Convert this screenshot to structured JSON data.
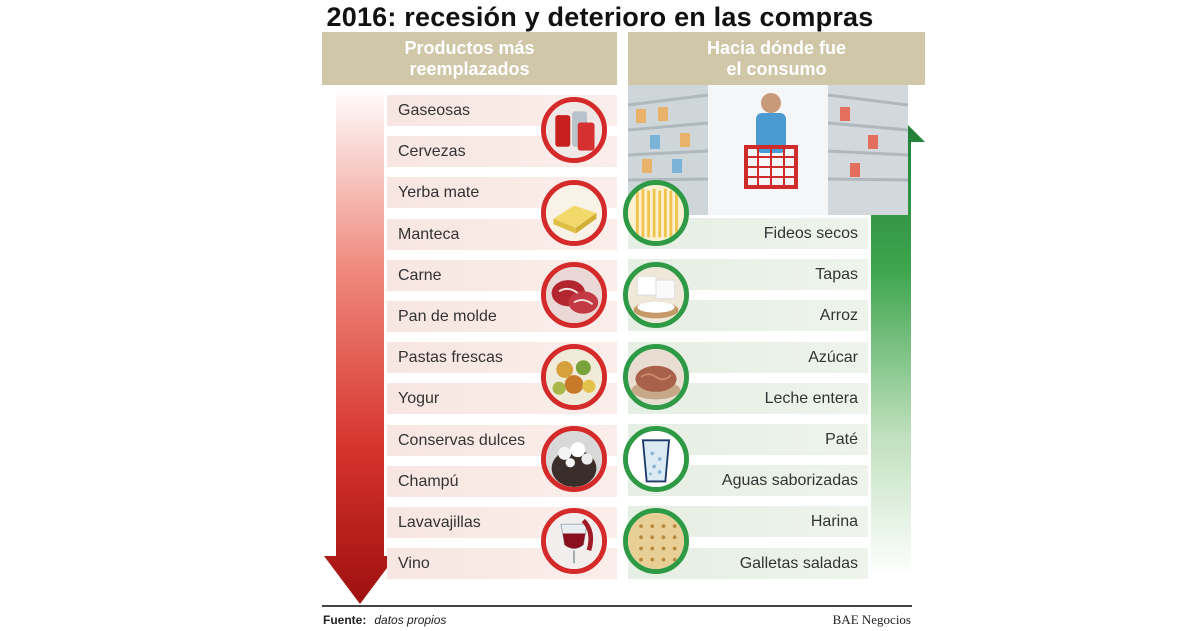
{
  "title": "2016: recesión y deterioro en las compras",
  "left_header": "Productos más\nreemplazados",
  "right_header": "Hacia dónde fue\nel consumo",
  "replaced_products": [
    "Gaseosas",
    "Cervezas",
    "Yerba mate",
    "Manteca",
    "Carne",
    "Pan de molde",
    "Pastas frescas",
    "Yogur",
    "Conservas dulces",
    "Champú",
    "Lavavajillas",
    "Vino"
  ],
  "consumption_targets": [
    "Fideos secos",
    "Tapas",
    "Arroz",
    "Azúcar",
    "Leche entera",
    "Paté",
    "Aguas saborizadas",
    "Harina",
    "Galletas saladas"
  ],
  "source_label": "Fuente:",
  "source_value": "datos propios",
  "brand": "BAE Negocios",
  "colors": {
    "red": "#d42a2a",
    "green": "#2f9a45",
    "header": "#cfc7a8"
  },
  "left_icons": [
    "soda-cans-icon",
    "butter-icon",
    "meat-icon",
    "pasta-icon",
    "shampoo-icon",
    "wine-icon"
  ],
  "right_icons": [
    "dry-pasta-icon",
    "sugar-icon",
    "pate-icon",
    "water-glass-icon",
    "cracker-icon"
  ]
}
